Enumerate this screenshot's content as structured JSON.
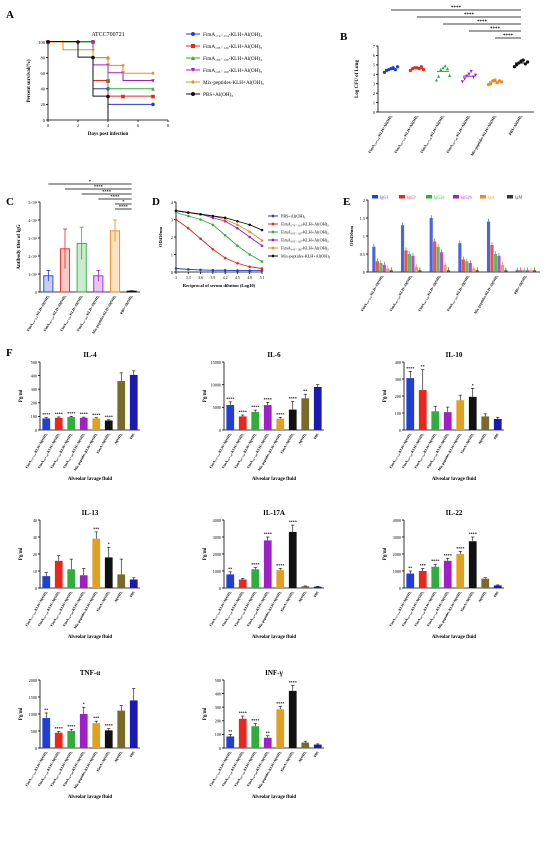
{
  "figure": {
    "panel_labels": [
      "A",
      "B",
      "C",
      "D",
      "E",
      "F"
    ],
    "significance": [
      "*",
      "**",
      "***",
      "****"
    ]
  },
  "chart_data": [
    {
      "id": "A",
      "type": "line",
      "title": "ATCC700721",
      "xlabel": "Days post infection",
      "ylabel": "Percent survival(%)",
      "xlim": [
        0,
        8
      ],
      "ylim": [
        0,
        100
      ],
      "xticks": [
        0,
        2,
        4,
        6,
        8
      ],
      "yticks": [
        0,
        20,
        40,
        60,
        80,
        100
      ],
      "grid": false,
      "legend": "right",
      "series": [
        {
          "name": "FimA₁₇₄₋₁₁₄-KLH+Al(OH)₃",
          "color": "#1f3fd6",
          "marker": "circle",
          "x": [
            0,
            3,
            3,
            4,
            4,
            7
          ],
          "y": [
            100,
            100,
            40,
            40,
            20,
            20
          ]
        },
        {
          "name": "FimA₁₀₅₋₁₂₀-KLH+Al(OH)₃",
          "color": "#e8281e",
          "marker": "square",
          "x": [
            0,
            3,
            3,
            4,
            4,
            5,
            5,
            7
          ],
          "y": [
            100,
            100,
            50,
            50,
            30,
            30,
            30,
            30
          ]
        },
        {
          "name": "FimA₁₀₅₋₁₂₀-KLH+Al(OH)₃",
          "color": "#2fae3b",
          "marker": "triangle",
          "x": [
            0,
            3,
            3,
            4,
            4,
            7
          ],
          "y": [
            100,
            100,
            80,
            80,
            40,
            40
          ]
        },
        {
          "name": "FimA₁₄₅₋₁₆₀-KLH+Al(OH)₃",
          "color": "#a020c8",
          "marker": "triangle-down",
          "x": [
            0,
            3,
            3,
            4,
            4,
            5,
            5,
            7
          ],
          "y": [
            100,
            100,
            70,
            70,
            60,
            60,
            50,
            50
          ]
        },
        {
          "name": "Mix-peptides-KLH+Al(OH)₃",
          "color": "#f08a1c",
          "marker": "diamond",
          "x": [
            0,
            1,
            1,
            3,
            3,
            4,
            4,
            5,
            5,
            7
          ],
          "y": [
            100,
            100,
            90,
            90,
            80,
            80,
            70,
            70,
            60,
            60
          ]
        },
        {
          "name": "PBS+Al(OH)₃",
          "color": "#111111",
          "marker": "circle",
          "x": [
            0,
            2,
            2,
            3,
            3,
            4,
            4
          ],
          "y": [
            100,
            100,
            80,
            80,
            30,
            30,
            0
          ]
        }
      ]
    },
    {
      "id": "B",
      "type": "scatter",
      "ylabel": "Log CFU of Lung",
      "ylim": [
        0,
        7
      ],
      "yticks": [
        0,
        1,
        2,
        3,
        4,
        5,
        6,
        7
      ],
      "significance": [
        "****",
        "****",
        "****",
        "****",
        "****"
      ],
      "categories": [
        "FimA₁₇₄₋₁₁₄-KLH+Al(OH)₃",
        "FimA₁₀₅₋₁₂₀-KLH+Al(OH)₃",
        "FimA₁₀₅₋₁₂₀-KLH+Al(OH)₃",
        "FimA₁₄₅₋₁₆₀-KLH+Al(OH)₃",
        "Mix-peptides-KLH+Al(OH)₃",
        "PBS+Al(OH)₃"
      ],
      "colors": [
        "#1f3fd6",
        "#e8281e",
        "#2fae3b",
        "#a020c8",
        "#f08a1c",
        "#111111"
      ],
      "means": [
        4.5,
        4.6,
        4.3,
        3.8,
        3.2,
        5.2
      ],
      "points": [
        [
          4.2,
          4.4,
          4.5,
          4.6,
          4.7,
          4.5,
          4.8
        ],
        [
          4.4,
          4.6,
          4.7,
          4.7,
          4.6,
          4.8,
          4.5
        ],
        [
          3.4,
          3.8,
          4.5,
          4.7,
          4.9,
          4.6,
          3.9
        ],
        [
          3.2,
          3.5,
          3.8,
          4.0,
          4.3,
          3.7,
          3.9
        ],
        [
          2.9,
          3.0,
          3.3,
          3.4,
          3.1,
          3.3,
          3.2
        ],
        [
          4.8,
          5.0,
          5.2,
          5.4,
          5.5,
          5.1,
          5.3
        ]
      ]
    },
    {
      "id": "C",
      "type": "bar",
      "ylabel": "Antibody titer of IgG",
      "ylim": [
        0,
        5
      ],
      "ytick_labels": [
        "0",
        "1×10⁴",
        "2×10⁴",
        "3×10⁴",
        "4×10⁴",
        "5×10⁴"
      ],
      "significance": [
        "*",
        "****",
        "****",
        "****",
        "*",
        "****"
      ],
      "categories": [
        "FimA₁₇₄₋₁₁₄-KLH+Al(OH)₃",
        "FimA₁₀₅₋₁₂₀-KLH+Al(OH)₃",
        "FimA₁₀₅₋₁₂₀-KLH+Al(OH)₃",
        "FimA₁₄₅₋₁₆₀-KLH+Al(OH)₃",
        "Mix-peptides-KLH+Al(OH)₃",
        "PBS+Al(OH)₃"
      ],
      "colors": [
        "#1f3fd6",
        "#e8281e",
        "#2fae3b",
        "#a020c8",
        "#f08a1c",
        "#111111"
      ],
      "values": [
        0.9,
        2.4,
        2.7,
        0.9,
        3.4,
        0.05
      ],
      "errors": [
        0.3,
        1.1,
        0.9,
        0.3,
        0.6,
        0.02
      ]
    },
    {
      "id": "D",
      "type": "line",
      "xlabel": "Reciprocal of serum dilution (Log10)",
      "ylabel": "OD450nm",
      "xlim": [
        3,
        5.1
      ],
      "ylim": [
        0,
        4
      ],
      "xticks": [
        3,
        3.3,
        3.6,
        3.9,
        4.2,
        4.5,
        4.8,
        5.1
      ],
      "yticks": [
        0,
        1,
        2,
        3,
        4
      ],
      "legend": "right",
      "series": [
        {
          "name": "PBS+Al(OH)₃",
          "color": "#1f3fd6",
          "y": [
            0.2,
            0.15,
            0.12,
            0.1,
            0.1,
            0.08,
            0.08,
            0.08
          ]
        },
        {
          "name": "FimA₁₇₄₋₁₁₄-KLH+Al(OH)₃",
          "color": "#e8281e",
          "y": [
            3.0,
            2.5,
            1.9,
            1.3,
            0.8,
            0.5,
            0.3,
            0.2
          ]
        },
        {
          "name": "FimA₁₀₅₋₁₂₀-KLH+Al(OH)₃",
          "color": "#2fae3b",
          "y": [
            3.4,
            3.2,
            3.0,
            2.7,
            2.1,
            1.5,
            1.0,
            0.6
          ]
        },
        {
          "name": "FimA₁₀₅₋₁₂₀-KLH+Al(OH)₃",
          "color": "#a020c8",
          "y": [
            3.5,
            3.4,
            3.3,
            3.1,
            2.9,
            2.5,
            2.0,
            1.5
          ]
        },
        {
          "name": "FimA₁₄₅₋₁₆₀-KLH+Al(OH)₃",
          "color": "#f08a1c",
          "y": [
            3.5,
            3.4,
            3.3,
            3.2,
            3.0,
            2.7,
            2.3,
            1.8
          ]
        },
        {
          "name": "Mix-peptides-KLH+Al(OH)₃",
          "color": "#111111",
          "y": [
            3.5,
            3.4,
            3.3,
            3.2,
            3.1,
            2.9,
            2.7,
            2.4
          ]
        }
      ]
    },
    {
      "id": "E",
      "type": "bar",
      "ylabel": "OD450nm",
      "ylim": [
        0,
        2.0
      ],
      "yticks": [
        0,
        0.5,
        1.0,
        1.5,
        2.0
      ],
      "legend": "top",
      "subclasses": [
        "IgG1",
        "IgG3",
        "IgG2a",
        "IgG2b",
        "IgA",
        "IgM"
      ],
      "subclass_colors": [
        "#1f3fd6",
        "#e8281e",
        "#2fae3b",
        "#a020c8",
        "#f08a1c",
        "#333333"
      ],
      "categories": [
        "FimA₁₇₄₋₁₁₄-KLH+Al(OH)₃",
        "FimA₁₀₅₋₁₂₀-KLH+Al(OH)₃",
        "FimA₁₀₅₋₁₂₀-KLH+Al(OH)₃",
        "FimA₁₄₅₋₁₆₀-KLH+Al(OH)₃",
        "Mix-peptides-KLH+Al(OH)₃",
        "PBS+Al(OH)₃"
      ],
      "values": [
        [
          0.7,
          0.3,
          0.25,
          0.2,
          0.1,
          0.05
        ],
        [
          1.3,
          0.6,
          0.5,
          0.45,
          0.15,
          0.05
        ],
        [
          1.5,
          0.85,
          0.7,
          0.55,
          0.2,
          0.05
        ],
        [
          0.8,
          0.35,
          0.3,
          0.25,
          0.1,
          0.05
        ],
        [
          1.4,
          0.75,
          0.5,
          0.45,
          0.2,
          0.05
        ],
        [
          0.05,
          0.05,
          0.05,
          0.05,
          0.05,
          0.05
        ]
      ]
    },
    {
      "id": "F-IL-4",
      "type": "bar",
      "title": "IL-4",
      "xlabel": "Alveolar lavage fluid",
      "ylabel": "Pg/ml",
      "ylim": [
        0,
        500
      ],
      "yticks": [
        0,
        100,
        200,
        300,
        400,
        500
      ],
      "values": [
        85,
        90,
        95,
        90,
        85,
        70,
        360,
        405
      ],
      "errors": [
        6,
        6,
        6,
        5,
        5,
        5,
        60,
        30
      ],
      "sig": [
        "****",
        "****",
        "****",
        "****",
        "****",
        "****",
        "",
        ""
      ]
    },
    {
      "id": "F-IL-6",
      "type": "bar",
      "title": "IL-6",
      "xlabel": "Alveolar lavage fluid",
      "ylabel": "Pg/ml",
      "ylim": [
        0,
        15000
      ],
      "yticks": [
        0,
        5000,
        10000,
        15000
      ],
      "values": [
        5500,
        3000,
        4000,
        5500,
        2500,
        4500,
        7000,
        9500
      ],
      "errors": [
        700,
        300,
        400,
        600,
        300,
        1800,
        900,
        500
      ],
      "sig": [
        "****",
        "****",
        "****",
        "****",
        "****",
        "****",
        "**",
        ""
      ]
    },
    {
      "id": "F-IL-10",
      "type": "bar",
      "title": "IL-10",
      "xlabel": "Alveolar lavage fluid",
      "ylabel": "Pg/ml",
      "ylim": [
        0,
        400
      ],
      "yticks": [
        0,
        100,
        200,
        300,
        400
      ],
      "values": [
        305,
        235,
        110,
        105,
        175,
        195,
        80,
        65
      ],
      "errors": [
        40,
        120,
        30,
        30,
        30,
        50,
        15,
        10
      ],
      "sig": [
        "****",
        "**",
        "",
        "",
        "",
        "*",
        "",
        ""
      ]
    },
    {
      "id": "F-IL-13",
      "type": "bar",
      "title": "IL-13",
      "xlabel": "Alveolar lavage fluid",
      "ylabel": "Pg/ml",
      "ylim": [
        0,
        40
      ],
      "yticks": [
        0,
        10,
        20,
        30,
        40
      ],
      "values": [
        7,
        16,
        11,
        7.5,
        29,
        18,
        8,
        5
      ],
      "errors": [
        2,
        3,
        6,
        4,
        4,
        6,
        9,
        1
      ],
      "sig": [
        "",
        "",
        "",
        "",
        "***",
        "*",
        "",
        ""
      ]
    },
    {
      "id": "F-IL-17A",
      "type": "bar",
      "title": "IL-17A",
      "xlabel": "Alveolar lavage fluid",
      "ylabel": "Pg/ml",
      "ylim": [
        0,
        4000
      ],
      "yticks": [
        0,
        1000,
        2000,
        3000,
        4000
      ],
      "values": [
        800,
        500,
        1100,
        2800,
        1050,
        3300,
        100,
        80
      ],
      "errors": [
        150,
        60,
        100,
        200,
        100,
        400,
        20,
        15
      ],
      "sig": [
        "**",
        "",
        "****",
        "****",
        "****",
        "****",
        "",
        ""
      ]
    },
    {
      "id": "F-IL-22",
      "type": "bar",
      "title": "IL-22",
      "xlabel": "Alveolar lavage fluid",
      "ylabel": "Pg/ml",
      "ylim": [
        0,
        4000
      ],
      "yticks": [
        0,
        1000,
        2000,
        3000,
        4000
      ],
      "values": [
        850,
        1000,
        1250,
        1600,
        2000,
        2750,
        550,
        150
      ],
      "errors": [
        150,
        150,
        150,
        150,
        150,
        250,
        60,
        30
      ],
      "sig": [
        "**",
        "***",
        "****",
        "****",
        "****",
        "****",
        "",
        ""
      ]
    },
    {
      "id": "F-TNF-a",
      "type": "bar",
      "title": "TNF-α",
      "xlabel": "Alveolar lavage fluid",
      "ylabel": "Pg/ml",
      "ylim": [
        0,
        2000
      ],
      "yticks": [
        0,
        500,
        1000,
        1500,
        2000
      ],
      "values": [
        880,
        450,
        500,
        1000,
        730,
        520,
        1100,
        1400
      ],
      "errors": [
        150,
        40,
        50,
        200,
        60,
        50,
        150,
        350
      ],
      "sig": [
        "**",
        "****",
        "****",
        "*",
        "***",
        "****",
        "",
        ""
      ]
    },
    {
      "id": "F-INF-g",
      "type": "bar",
      "title": "INF-γ",
      "xlabel": "Alveolar lavage fluid",
      "ylabel": "Pg/ml",
      "ylim": [
        0,
        500
      ],
      "yticks": [
        0,
        100,
        200,
        300,
        400,
        500
      ],
      "values": [
        85,
        215,
        160,
        75,
        285,
        420,
        40,
        25
      ],
      "errors": [
        15,
        20,
        20,
        15,
        20,
        40,
        10,
        5
      ],
      "sig": [
        "**",
        "****",
        "****",
        "**",
        "****",
        "****",
        "",
        ""
      ]
    }
  ],
  "cytokine_groups": {
    "labels": [
      "FimA₁₇₄₋₁₁₄-KLH+Al(OH)₃",
      "FimA₁₀₅₋₁₂₀-KLH+Al(OH)₃",
      "FimA₁₀₅₋₁₂₀-KLH+Al(OH)₃",
      "FimA₁₄₅₋₁₆₀-KLH+Al(OH)₃",
      "Mix-peptides-KLH+Al(OH)₃",
      "FimA+Al(OH)₃",
      "Al(OH)₃",
      "PBS"
    ],
    "colors": [
      "#1f3fd6",
      "#e8281e",
      "#2fae3b",
      "#a020c8",
      "#e0a020",
      "#111111",
      "#7a6a2a",
      "#1a1ab0"
    ]
  }
}
